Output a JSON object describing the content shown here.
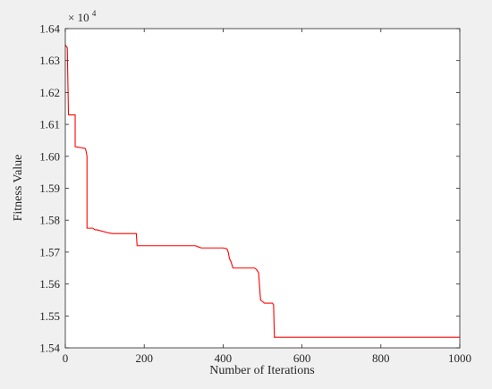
{
  "chart_data": {
    "type": "line",
    "title": "",
    "xlabel": "Number of Iterations",
    "ylabel": "Fitness Value",
    "y_multiplier_label": "× 10",
    "y_multiplier_exponent": "4",
    "xlim": [
      0,
      1000
    ],
    "ylim": [
      1.54,
      1.64
    ],
    "x_ticks": [
      0,
      200,
      400,
      600,
      800,
      1000
    ],
    "x_tick_labels": [
      "0",
      "200",
      "400",
      "600",
      "800",
      "1000"
    ],
    "y_ticks": [
      1.54,
      1.55,
      1.56,
      1.57,
      1.58,
      1.59,
      1.6,
      1.61,
      1.62,
      1.63,
      1.64
    ],
    "y_tick_labels": [
      "1.54",
      "1.55",
      "1.56",
      "1.57",
      "1.58",
      "1.59",
      "1.60",
      "1.61",
      "1.62",
      "1.63",
      "1.64"
    ],
    "grid": false,
    "line_color": "#ff0000",
    "series": [
      {
        "x": [
          0,
          2,
          5,
          8,
          25,
          25,
          50,
          52,
          55,
          55,
          65,
          70,
          75,
          80,
          110,
          120,
          130,
          180,
          182,
          330,
          340,
          345,
          400,
          410,
          413,
          416,
          420,
          425,
          470,
          480,
          485,
          490,
          492,
          495,
          500,
          505,
          510,
          525,
          528,
          530,
          1000
        ],
        "y": [
          1.635,
          1.6345,
          1.634,
          1.613,
          1.613,
          1.603,
          1.6025,
          1.602,
          1.6,
          1.5775,
          1.5775,
          1.5775,
          1.577,
          1.577,
          1.576,
          1.5758,
          1.5758,
          1.5758,
          1.572,
          1.572,
          1.5715,
          1.5713,
          1.5713,
          1.571,
          1.57,
          1.568,
          1.567,
          1.565,
          1.565,
          1.565,
          1.5645,
          1.5635,
          1.56,
          1.555,
          1.5545,
          1.554,
          1.554,
          1.554,
          1.5535,
          1.5433,
          1.5433
        ]
      }
    ]
  }
}
